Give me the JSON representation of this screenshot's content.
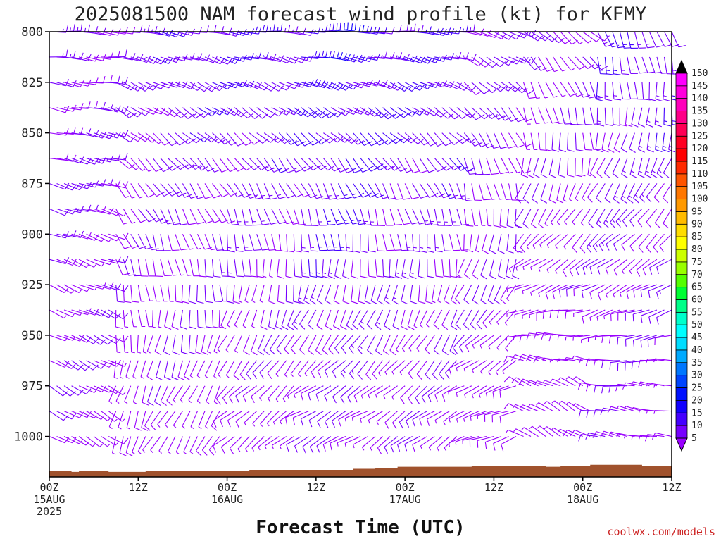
{
  "chart_data": {
    "type": "wind_barb_profile",
    "title": "2025081500 NAM forecast wind profile (kt) for KFMY",
    "xlabel": "Forecast Time (UTC)",
    "y_axis": {
      "type": "pressure",
      "units": "hPa",
      "inverted": true,
      "range": [
        1020,
        800
      ],
      "ticks": [
        {
          "value": 800,
          "label": "800"
        },
        {
          "value": 825,
          "label": "825"
        },
        {
          "value": 850,
          "label": "850"
        },
        {
          "value": 875,
          "label": "875"
        },
        {
          "value": 900,
          "label": "900"
        },
        {
          "value": 925,
          "label": "925"
        },
        {
          "value": 950,
          "label": "950"
        },
        {
          "value": 975,
          "label": "975"
        },
        {
          "value": 1000,
          "label": "1000"
        }
      ]
    },
    "x_axis": {
      "range_hours": [
        0,
        84
      ],
      "ticks": [
        {
          "hour": 0,
          "lines": [
            "00Z",
            "15AUG",
            "2025"
          ]
        },
        {
          "hour": 12,
          "lines": [
            "12Z"
          ]
        },
        {
          "hour": 24,
          "lines": [
            "00Z",
            "16AUG"
          ]
        },
        {
          "hour": 36,
          "lines": [
            "12Z"
          ]
        },
        {
          "hour": 48,
          "lines": [
            "00Z",
            "17AUG"
          ]
        },
        {
          "hour": 60,
          "lines": [
            "12Z"
          ]
        },
        {
          "hour": 72,
          "lines": [
            "00Z",
            "18AUG"
          ]
        },
        {
          "hour": 84,
          "lines": [
            "12Z"
          ]
        }
      ]
    },
    "colorbar": {
      "units": "kt",
      "labels": [
        "150",
        "145",
        "140",
        "135",
        "130",
        "125",
        "120",
        "115",
        "110",
        "105",
        "100",
        "95",
        "90",
        "85",
        "80",
        "75",
        "70",
        "65",
        "60",
        "55",
        "50",
        "45",
        "40",
        "35",
        "30",
        "25",
        "20",
        "15",
        "10",
        "5"
      ],
      "colors": [
        "#ff00ff",
        "#ff00dd",
        "#ff00bb",
        "#ff0088",
        "#ff0055",
        "#ff0022",
        "#ff0000",
        "#ff2a00",
        "#ff5500",
        "#ff7700",
        "#ff9900",
        "#ffbb00",
        "#ffdd00",
        "#ffff00",
        "#ccff00",
        "#99ff00",
        "#55ff00",
        "#00ff33",
        "#00ff88",
        "#00ffcc",
        "#00ffff",
        "#00ddff",
        "#00aaff",
        "#0077ff",
        "#0044ff",
        "#0011ff",
        "#1100ff",
        "#4400ff",
        "#7700ff",
        "#9900ff"
      ]
    },
    "surface": {
      "color": "#a0522d",
      "surface_pressure_hpa": [
        1017,
        1017,
        1017,
        1017.5,
        1017,
        1017,
        1017,
        1017,
        1017.5,
        1017.5,
        1017.5,
        1017.5,
        1017.5,
        1017,
        1017,
        1017,
        1017,
        1017,
        1017,
        1017,
        1017,
        1017,
        1017,
        1017,
        1017,
        1017,
        1017,
        1016.5,
        1016.5,
        1016.5,
        1016.5,
        1016.5,
        1016.5,
        1016.5,
        1016.5,
        1016.5,
        1016.5,
        1016.5,
        1016.5,
        1016.5,
        1016.5,
        1016,
        1016,
        1016,
        1015.5,
        1015.5,
        1015.5,
        1015,
        1015,
        1015,
        1015,
        1015,
        1015,
        1015,
        1015,
        1015,
        1015,
        1014.5,
        1014.5,
        1014.5,
        1014.5,
        1014.5,
        1014.5,
        1014.5,
        1014.5,
        1014.5,
        1014.5,
        1015,
        1015,
        1014.5,
        1014.5,
        1014.5,
        1014.5,
        1014,
        1014,
        1014,
        1014,
        1014,
        1014,
        1014,
        1014.5,
        1014.5,
        1014.5,
        1014.5,
        1014.5
      ]
    },
    "wind_regimes": [
      {
        "from_hour": 0,
        "to_hour": 9,
        "upper_dir_deg": 95,
        "upper_speed_kt": 12,
        "lower_dir_deg": 120,
        "lower_speed_kt": 8
      },
      {
        "from_hour": 9,
        "to_hour": 14,
        "upper_dir_deg": 100,
        "upper_speed_kt": 12,
        "lower_dir_deg": 200,
        "lower_speed_kt": 5
      },
      {
        "from_hour": 14,
        "to_hour": 24,
        "upper_dir_deg": 100,
        "upper_speed_kt": 14,
        "lower_dir_deg": 210,
        "lower_speed_kt": 7
      },
      {
        "from_hour": 24,
        "to_hour": 34,
        "upper_dir_deg": 95,
        "upper_speed_kt": 15,
        "lower_dir_deg": 230,
        "lower_speed_kt": 7
      },
      {
        "from_hour": 34,
        "to_hour": 44,
        "upper_dir_deg": 90,
        "upper_speed_kt": 18,
        "lower_dir_deg": 240,
        "lower_speed_kt": 9
      },
      {
        "from_hour": 44,
        "to_hour": 56,
        "upper_dir_deg": 95,
        "upper_speed_kt": 15,
        "lower_dir_deg": 235,
        "lower_speed_kt": 8
      },
      {
        "from_hour": 56,
        "to_hour": 64,
        "upper_dir_deg": 110,
        "upper_speed_kt": 12,
        "lower_dir_deg": 250,
        "lower_speed_kt": 7
      },
      {
        "from_hour": 64,
        "to_hour": 74,
        "upper_dir_deg": 130,
        "upper_speed_kt": 10,
        "lower_dir_deg": 300,
        "lower_speed_kt": 6
      },
      {
        "from_hour": 74,
        "to_hour": 85,
        "upper_dir_deg": 160,
        "upper_speed_kt": 14,
        "lower_dir_deg": 280,
        "lower_speed_kt": 8
      }
    ]
  },
  "credit": "coolwx.com/models"
}
